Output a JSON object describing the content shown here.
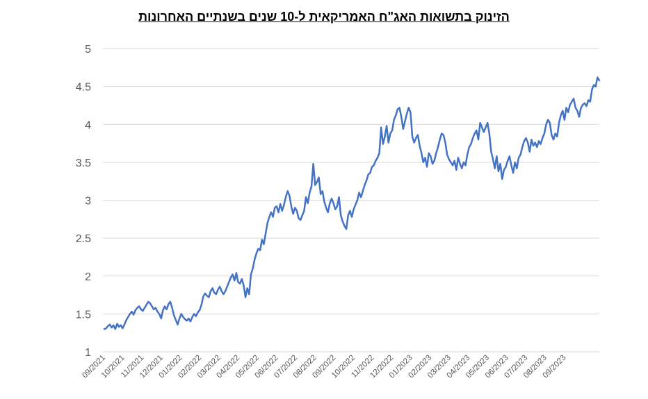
{
  "chart_data": {
    "type": "line",
    "title": "הזינוק בתשואות האג\"ח האמריקאית ל-10 שנים בשנתיים האחרונות",
    "xlabel": "",
    "ylabel": "",
    "ylim": [
      1,
      5
    ],
    "yticks": [
      "1",
      "1.5",
      "2",
      "2.5",
      "3",
      "3.5",
      "4",
      "4.5",
      "5"
    ],
    "grid": "horizontal",
    "x_tick_labels": [
      "09/2021",
      "10/2021",
      "11/2021",
      "12/2021",
      "01/2022",
      "02/2022",
      "03/2022",
      "04/2022",
      "05/2022",
      "06/2022",
      "07/2022",
      "08/2022",
      "09/2022",
      "10/2022",
      "11/2022",
      "12/2022",
      "01/2023",
      "02/2023",
      "03/2023",
      "04/2023",
      "05/2023",
      "06/2023",
      "07/2023",
      "08/2023",
      "09/2023"
    ],
    "line_color": "#4472C4",
    "series": [
      {
        "values": [
          1.3,
          1.31,
          1.34,
          1.36,
          1.32,
          1.35,
          1.3,
          1.37,
          1.33,
          1.35,
          1.31,
          1.36,
          1.42,
          1.46,
          1.5,
          1.53,
          1.49,
          1.55,
          1.58,
          1.6,
          1.56,
          1.54,
          1.58,
          1.62,
          1.66,
          1.64,
          1.6,
          1.56,
          1.58,
          1.53,
          1.5,
          1.44,
          1.55,
          1.6,
          1.56,
          1.63,
          1.66,
          1.58,
          1.48,
          1.42,
          1.36,
          1.44,
          1.5,
          1.46,
          1.43,
          1.41,
          1.44,
          1.4,
          1.46,
          1.5,
          1.47,
          1.52,
          1.55,
          1.62,
          1.73,
          1.77,
          1.74,
          1.72,
          1.8,
          1.84,
          1.78,
          1.76,
          1.82,
          1.86,
          1.8,
          1.76,
          1.8,
          1.86,
          1.92,
          1.98,
          2.02,
          1.94,
          2.04,
          1.92,
          1.9,
          1.96,
          1.88,
          1.72,
          1.84,
          1.76,
          2.02,
          2.1,
          2.22,
          2.3,
          2.36,
          2.34,
          2.48,
          2.42,
          2.56,
          2.7,
          2.78,
          2.84,
          2.78,
          2.9,
          2.92,
          2.84,
          2.95,
          2.86,
          2.94,
          3.04,
          3.12,
          3.06,
          2.92,
          2.82,
          2.9,
          2.86,
          2.76,
          2.74,
          2.8,
          2.86,
          3.04,
          2.96,
          3.1,
          3.18,
          3.48,
          3.2,
          3.24,
          3.3,
          3.08,
          3.12,
          2.98,
          2.9,
          2.84,
          2.96,
          3.02,
          2.96,
          2.88,
          2.92,
          3.04,
          2.8,
          2.72,
          2.66,
          2.62,
          2.8,
          2.86,
          2.78,
          2.88,
          2.94,
          3.0,
          3.1,
          3.04,
          3.12,
          3.2,
          3.26,
          3.34,
          3.36,
          3.44,
          3.46,
          3.52,
          3.56,
          3.62,
          3.96,
          3.74,
          3.84,
          3.98,
          3.76,
          3.88,
          3.92,
          4.06,
          4.12,
          4.2,
          4.22,
          4.1,
          3.94,
          4.04,
          4.14,
          4.22,
          4.16,
          3.84,
          3.76,
          3.82,
          3.86,
          3.72,
          3.62,
          3.5,
          3.56,
          3.44,
          3.62,
          3.58,
          3.48,
          3.52,
          3.62,
          3.7,
          3.8,
          3.88,
          3.86,
          3.76,
          3.6,
          3.54,
          3.5,
          3.46,
          3.52,
          3.4,
          3.56,
          3.48,
          3.42,
          3.5,
          3.46,
          3.6,
          3.7,
          3.74,
          3.82,
          3.88,
          3.92,
          3.8,
          4.02,
          3.96,
          3.9,
          3.96,
          4.02,
          3.88,
          3.64,
          3.54,
          3.42,
          3.58,
          3.38,
          3.48,
          3.28,
          3.4,
          3.44,
          3.52,
          3.58,
          3.46,
          3.36,
          3.5,
          3.42,
          3.56,
          3.6,
          3.7,
          3.78,
          3.82,
          3.76,
          3.64,
          3.8,
          3.72,
          3.76,
          3.7,
          3.78,
          3.74,
          3.82,
          3.88,
          4.0,
          4.06,
          4.02,
          3.86,
          3.8,
          3.88,
          3.84,
          4.02,
          4.12,
          4.18,
          4.06,
          4.22,
          4.16,
          4.26,
          4.3,
          4.34,
          4.22,
          4.18,
          4.1,
          4.22,
          4.26,
          4.28,
          4.24,
          4.32,
          4.3,
          4.46,
          4.52,
          4.5,
          4.62,
          4.58
        ]
      }
    ]
  }
}
